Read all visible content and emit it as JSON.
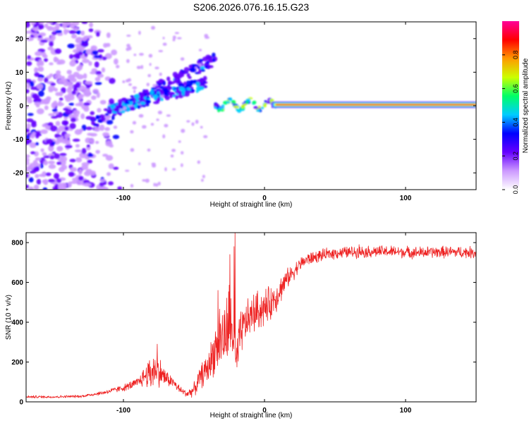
{
  "title": "S206.2026.076.16.15.G23",
  "chart_data": [
    {
      "type": "heatmap",
      "xlabel": "Height of straight line (km)",
      "ylabel": "Frequency (Hz)",
      "xlim": [
        -169,
        150
      ],
      "ylim": [
        -25,
        25
      ],
      "xticks": [
        -100,
        0,
        100
      ],
      "xtick_labels": [
        "-100",
        "0",
        "100"
      ],
      "yticks": [
        -20,
        -10,
        0,
        10,
        20
      ],
      "ytick_labels": [
        "-20",
        "-10",
        "0",
        "10",
        "20"
      ],
      "colorbar": {
        "label": "Normalized spectral amplitude",
        "range": [
          0,
          1
        ],
        "ticks": [
          0.0,
          0.2,
          0.4,
          0.6,
          0.8
        ],
        "tick_labels": [
          "0.0",
          "0.2",
          "0.4",
          "0.6",
          "0.8"
        ],
        "colors": [
          "#ffffff",
          "#cc99ff",
          "#6600ff",
          "#0000ff",
          "#00ccff",
          "#00ff66",
          "#ccff00",
          "#ff9900",
          "#ff0000",
          "#ff0099"
        ]
      },
      "features": {
        "carrier_line": {
          "x": [
            8,
            150
          ],
          "frequency": 0.3,
          "amplitude": 0.9
        },
        "diagonal_band_upper": {
          "x": [
            -110,
            -42
          ],
          "frequency": [
            -1,
            6.5
          ]
        },
        "diagonal_band_lower": {
          "x": [
            -122,
            -35
          ],
          "frequency": [
            -5,
            14
          ]
        },
        "diffraction_wiggle": {
          "x": [
            -35,
            8
          ],
          "frequency": [
            -2.5,
            2
          ]
        },
        "noise_region": {
          "x": [
            -169,
            -100
          ],
          "frequency": [
            -25,
            25
          ]
        }
      }
    },
    {
      "type": "line",
      "xlabel": "Height of straight line (km)",
      "ylabel": "SNR (10 * v/v)",
      "xlim": [
        -169,
        150
      ],
      "ylim": [
        0,
        850
      ],
      "xticks": [
        -100,
        0,
        100
      ],
      "xtick_labels": [
        "-100",
        "0",
        "100"
      ],
      "yticks": [
        0,
        200,
        400,
        600,
        800
      ],
      "ytick_labels": [
        "0",
        "200",
        "400",
        "600",
        "800"
      ],
      "color": "#ee2222",
      "series": [
        {
          "name": "SNR",
          "x": [
            -169,
            -150,
            -130,
            -115,
            -100,
            -90,
            -85,
            -80,
            -77,
            -73,
            -70,
            -65,
            -60,
            -55,
            -50,
            -45,
            -40,
            -35,
            -32,
            -28,
            -25,
            -22,
            -20,
            -18,
            -15,
            -10,
            -5,
            0,
            5,
            10,
            15,
            20,
            25,
            30,
            40,
            50,
            60,
            70,
            80,
            90,
            100,
            110,
            120,
            130,
            140,
            150
          ],
          "values": [
            25,
            25,
            28,
            45,
            70,
            95,
            130,
            150,
            170,
            140,
            120,
            100,
            60,
            40,
            60,
            130,
            170,
            270,
            330,
            320,
            400,
            330,
            170,
            300,
            380,
            430,
            460,
            470,
            500,
            550,
            610,
            650,
            690,
            715,
            735,
            748,
            752,
            754,
            755,
            755,
            752,
            750,
            752,
            753,
            752,
            750
          ],
          "noise_amplitude": [
            8,
            8,
            8,
            12,
            20,
            30,
            60,
            120,
            100,
            80,
            50,
            30,
            25,
            20,
            40,
            70,
            90,
            150,
            220,
            200,
            250,
            150,
            130,
            160,
            120,
            120,
            120,
            110,
            100,
            90,
            60,
            50,
            40,
            40,
            35,
            35,
            35,
            35,
            35,
            35,
            35,
            35,
            35,
            35,
            35,
            35
          ],
          "spikes": [
            {
              "x": -20.8,
              "value": 850
            },
            {
              "x": -21.6,
              "value": 780
            },
            {
              "x": -24.5,
              "value": 740
            },
            {
              "x": -33,
              "value": 560
            },
            {
              "x": -76,
              "value": 290
            },
            {
              "x": 67,
              "value": 790
            }
          ]
        }
      ]
    }
  ]
}
